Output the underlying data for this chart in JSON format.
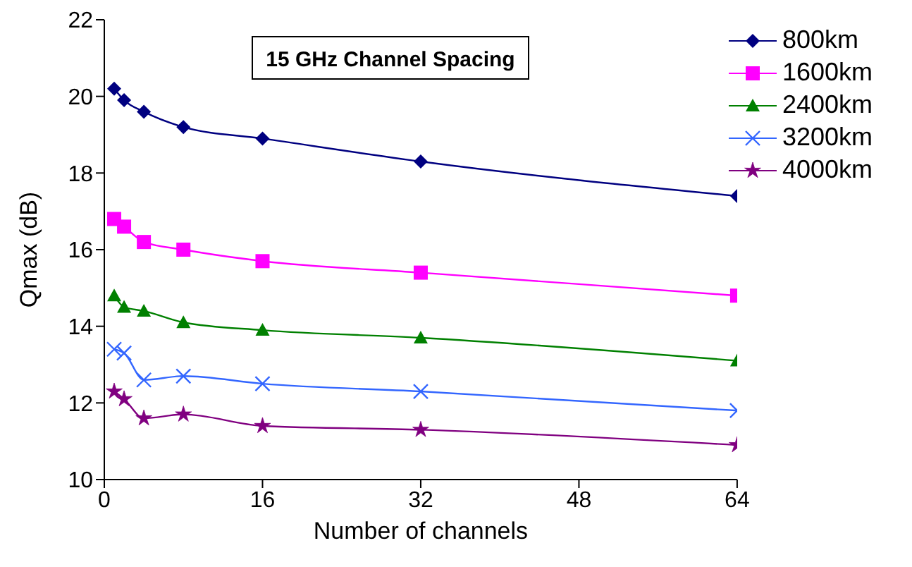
{
  "chart_data": {
    "type": "line",
    "title": "15 GHz Channel Spacing",
    "xlabel": "Number of channels",
    "ylabel": "Qmax (dB)",
    "x": [
      1,
      2,
      4,
      8,
      16,
      32,
      64
    ],
    "series": [
      {
        "name": "800km",
        "color": "#000080",
        "marker": "diamond",
        "values": [
          20.2,
          19.9,
          19.6,
          19.2,
          18.9,
          18.3,
          17.4
        ]
      },
      {
        "name": "1600km",
        "color": "#ff00ff",
        "marker": "square",
        "values": [
          16.8,
          16.6,
          16.2,
          16.0,
          15.7,
          15.4,
          14.8
        ]
      },
      {
        "name": "2400km",
        "color": "#008000",
        "marker": "triangle",
        "values": [
          14.8,
          14.5,
          14.4,
          14.1,
          13.9,
          13.7,
          13.1
        ]
      },
      {
        "name": "3200km",
        "color": "#3366ff",
        "marker": "cross",
        "values": [
          13.4,
          13.3,
          12.6,
          12.7,
          12.5,
          12.3,
          11.8
        ]
      },
      {
        "name": "4000km",
        "color": "#800080",
        "marker": "star",
        "values": [
          12.3,
          12.1,
          11.6,
          11.7,
          11.4,
          11.3,
          10.9
        ]
      }
    ],
    "xlim": [
      0,
      64
    ],
    "xticks": [
      0,
      16,
      32,
      48,
      64
    ],
    "ylim": [
      10,
      22
    ],
    "yticks": [
      10,
      12,
      14,
      16,
      18,
      20,
      22
    ],
    "grid": false,
    "legend": "top right"
  }
}
